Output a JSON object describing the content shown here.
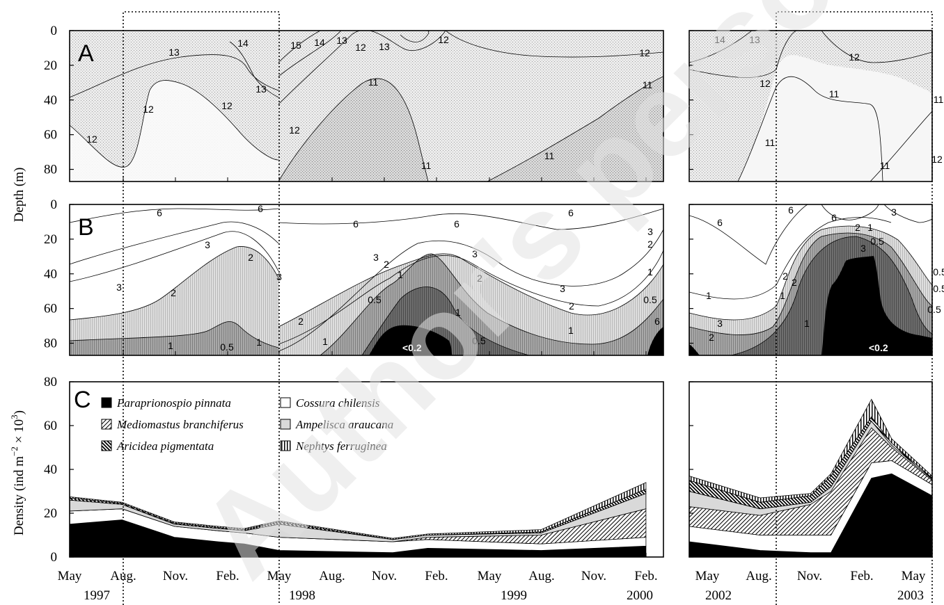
{
  "chart_data": [
    {
      "panel": "A",
      "type": "contour",
      "ylabel": "Depth (m)",
      "y_ticks": [
        "0",
        "20",
        "40",
        "60",
        "80"
      ],
      "ylim": [
        0,
        87
      ],
      "contour_labels": [
        "12",
        "13",
        "14",
        "13",
        "12",
        "12",
        "15",
        "14",
        "13",
        "12",
        "13",
        "12",
        "12",
        "11",
        "11",
        "11",
        "12",
        "11",
        "14",
        "13",
        "12",
        "12",
        "11",
        "11",
        "11",
        "12",
        "11"
      ]
    },
    {
      "panel": "B",
      "type": "contour",
      "y_ticks": [
        "0",
        "20",
        "40",
        "60",
        "80"
      ],
      "ylim": [
        0,
        87
      ],
      "contour_labels": [
        "6",
        "6",
        "3",
        "2",
        "3",
        "3",
        "2",
        "1",
        "0.5",
        "1",
        "6",
        "6",
        "6",
        "3",
        "2",
        "3",
        "1",
        "2",
        "0.5",
        "3",
        "2",
        "1",
        "1",
        "1",
        "0.5",
        "2",
        "3",
        "2",
        "1",
        "0.5",
        "6",
        "6",
        "6",
        "6",
        "3",
        "2",
        "1",
        "0.5",
        "3",
        "2",
        "2",
        "1",
        "1",
        "0.5",
        "0.5",
        "3",
        "2",
        "1",
        "0.5"
      ],
      "low_labels": [
        "<0.2",
        "<0.2"
      ]
    },
    {
      "panel": "C",
      "type": "area",
      "ylabel": "Density (ind m-2 × 103)",
      "ylim": [
        0,
        80
      ],
      "y_ticks": [
        "0",
        "20",
        "40",
        "60",
        "80"
      ],
      "x_month_labels": [
        "May",
        "Aug.",
        "Nov.",
        "Feb.",
        "May",
        "Aug.",
        "Nov.",
        "Feb.",
        "May",
        "Aug.",
        "Nov.",
        "Feb.",
        "May",
        "Aug.",
        "Nov.",
        "Feb.",
        "May"
      ],
      "x_year_labels": [
        "1997",
        "1998",
        "1999",
        "2000",
        "2002",
        "2003"
      ],
      "legend": [
        {
          "label": "Paraprionospio pinnata",
          "fill": "#000000"
        },
        {
          "label": "Cossura chilensis",
          "fill": "#ffffff"
        },
        {
          "label": "Mediomastus branchiferus",
          "fill": "hatch"
        },
        {
          "label": "Ampelisca araucana",
          "fill": "#d9d9d9"
        },
        {
          "label": "Aricidea pigmentata",
          "fill": "darkhatch"
        },
        {
          "label": "Nephtys ferruginea",
          "fill": "vstripe"
        }
      ],
      "segments": [
        {
          "x": [
            0,
            3,
            6,
            8.5,
            10,
            12,
            18.5,
            20.5,
            27,
            33
          ],
          "series": [
            {
              "name": "Paraprionospio pinnata",
              "values": [
                15,
                17,
                9,
                7,
                6,
                3,
                2,
                4,
                3,
                5
              ]
            },
            {
              "name": "Cossura chilensis",
              "values": [
                6,
                5,
                5,
                5,
                5,
                6,
                5,
                4,
                3,
                4
              ]
            },
            {
              "name": "Mediomastus branchiferus",
              "values": [
                0,
                0,
                0,
                0,
                0,
                0,
                0,
                1,
                4,
                13
              ]
            },
            {
              "name": "Ampelisca araucana",
              "values": [
                5,
                2,
                1,
                1,
                1,
                6,
                1,
                1,
                1,
                7
              ]
            },
            {
              "name": "Aricidea pigmentata",
              "values": [
                1,
                0.5,
                0.5,
                0.5,
                0.5,
                1,
                0,
                0,
                0.5,
                2
              ]
            },
            {
              "name": "Nephtys ferruginea",
              "values": [
                0.5,
                0.5,
                0.5,
                0.5,
                0.5,
                0.5,
                0.5,
                0.5,
                1,
                3
              ]
            }
          ]
        },
        {
          "x": [
            0,
            3.5,
            6,
            7,
            9,
            10,
            12
          ],
          "series": [
            {
              "name": "Paraprionospio pinnata",
              "values": [
                7,
                3,
                2,
                2,
                36,
                38,
                28
              ]
            },
            {
              "name": "Cossura chilensis",
              "values": [
                7,
                7,
                8,
                8,
                7,
                6,
                5
              ]
            },
            {
              "name": "Mediomastus branchiferus",
              "values": [
                9,
                9,
                14,
                20,
                16,
                6,
                2
              ]
            },
            {
              "name": "Ampelisca araucana",
              "values": [
                7,
                3,
                1,
                2,
                3,
                1,
                0.5
              ]
            },
            {
              "name": "Aricidea pigmentata",
              "values": [
                5,
                3,
                3,
                5,
                2,
                1,
                0.5
              ]
            },
            {
              "name": "Nephtys ferruginea",
              "values": [
                2,
                2,
                1,
                1,
                8,
                2,
                1
              ]
            }
          ]
        }
      ]
    }
  ]
}
